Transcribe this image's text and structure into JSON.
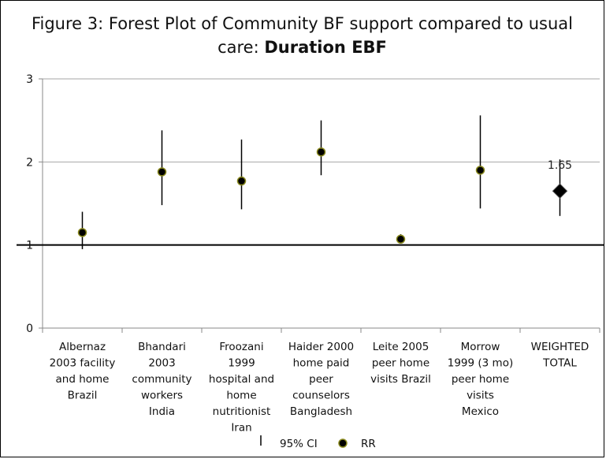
{
  "chart_data": {
    "type": "scatter",
    "title_line1": "Figure 3: Forest Plot of Community BF support compared to usual",
    "title_line2_prefix": "care: ",
    "title_line2_bold": "Duration EBF",
    "ylim": [
      0,
      3
    ],
    "yticks": [
      "0",
      "1",
      "2",
      "3"
    ],
    "reference_line": 1,
    "grid": true,
    "categories": [
      [
        "Albernaz",
        "2003 facility",
        "and home",
        "Brazil"
      ],
      [
        "Bhandari",
        "2003",
        "community",
        "workers",
        "India"
      ],
      [
        "Froozani",
        "1999",
        "hospital and",
        "home",
        "nutritionist",
        "Iran"
      ],
      [
        "Haider 2000",
        "home paid",
        "peer",
        "counselors",
        "Bangladesh"
      ],
      [
        "Leite 2005",
        "peer home",
        "visits Brazil"
      ],
      [
        "Morrow",
        "1999 (3 mo)",
        "peer home",
        "visits",
        "Mexico"
      ],
      [
        "WEIGHTED",
        "TOTAL"
      ]
    ],
    "series": [
      {
        "name": "RR",
        "points": [
          {
            "rr": 1.15,
            "ci_low": 0.95,
            "ci_high": 1.4
          },
          {
            "rr": 1.88,
            "ci_low": 1.48,
            "ci_high": 2.38
          },
          {
            "rr": 1.77,
            "ci_low": 1.43,
            "ci_high": 2.27
          },
          {
            "rr": 2.12,
            "ci_low": 1.84,
            "ci_high": 2.5
          },
          {
            "rr": 1.07,
            "ci_low": 1.03,
            "ci_high": 1.13
          },
          {
            "rr": 1.9,
            "ci_low": 1.44,
            "ci_high": 2.56
          },
          {
            "rr": 1.65,
            "ci_low": 1.35,
            "ci_high": 2.03
          }
        ]
      }
    ],
    "total_label": "1.65",
    "legend": [
      {
        "label": "95% CI",
        "symbol": "vertical-line"
      },
      {
        "label": "RR",
        "symbol": "dot"
      }
    ],
    "legend_position": "bottom",
    "colors": {
      "marker_fill": "#000000",
      "marker_edge": "#8a8a1e",
      "line": "#000000",
      "grid": "#a6a6a6"
    }
  }
}
